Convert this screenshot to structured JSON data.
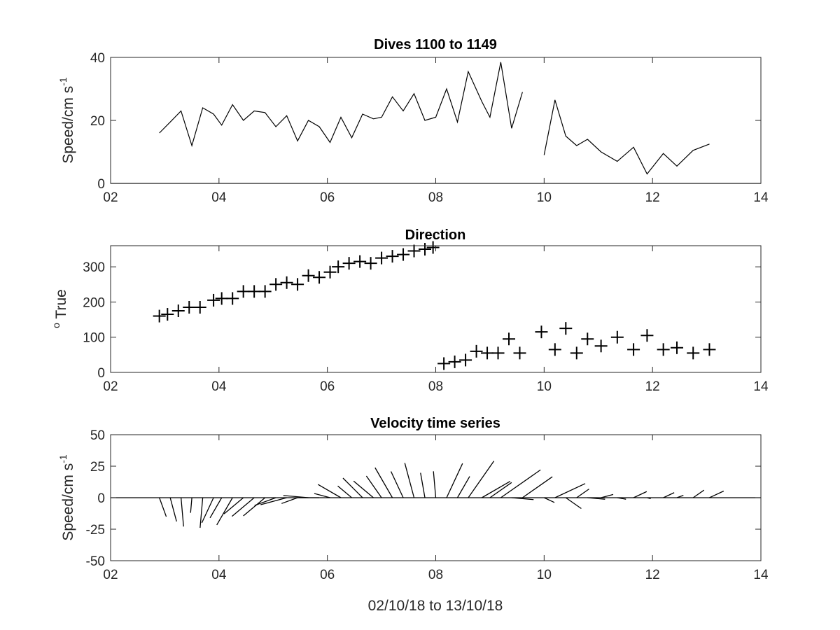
{
  "chart_data": [
    {
      "type": "line",
      "title": "Dives 1100 to 1149",
      "ylabel_main": "Speed/cm s",
      "ylabel_sup": "-1",
      "xlim": [
        2,
        14
      ],
      "ylim": [
        0,
        40
      ],
      "xticks": [
        "02",
        "04",
        "06",
        "08",
        "10",
        "12",
        "14"
      ],
      "yticks": [
        "0",
        "20",
        "40"
      ],
      "series": [
        {
          "x": [
            2.9,
            3.1,
            3.3,
            3.5,
            3.7,
            3.9,
            4.05,
            4.25,
            4.45,
            4.65,
            4.85,
            5.05,
            5.25,
            5.45,
            5.65,
            5.85,
            6.05,
            6.25,
            6.45,
            6.65,
            6.85,
            7.0,
            7.2,
            7.4,
            7.6,
            7.8,
            8.0,
            8.2,
            8.4,
            8.6,
            8.85,
            9.0,
            9.2,
            9.4,
            9.6
          ],
          "y": [
            16,
            19.5,
            23,
            12,
            24,
            22,
            18.5,
            25,
            20,
            23,
            22.5,
            18,
            21.5,
            13.5,
            20,
            18,
            13,
            21,
            14.5,
            22,
            20.5,
            21,
            27.5,
            23,
            28.5,
            20,
            21,
            30,
            19.5,
            35.5,
            26,
            21,
            38.5,
            17.5,
            29
          ]
        },
        {
          "x": [
            10.0,
            10.2,
            10.4,
            10.6,
            10.8,
            11.05,
            11.35,
            11.65,
            11.9,
            12.2,
            12.45,
            12.75,
            13.05
          ],
          "y": [
            9,
            26.5,
            15,
            12,
            14,
            10,
            7,
            11.5,
            3,
            9.5,
            5.5,
            10.5,
            12.5
          ]
        }
      ]
    },
    {
      "type": "scatter",
      "title": "Direction",
      "ylabel_sup": "o",
      "ylabel_main": " True",
      "xlim": [
        2,
        14
      ],
      "ylim": [
        0,
        360
      ],
      "xticks": [
        "02",
        "04",
        "06",
        "08",
        "10",
        "12",
        "14"
      ],
      "yticks": [
        "0",
        "100",
        "200",
        "300"
      ],
      "x": [
        2.9,
        3.05,
        3.25,
        3.45,
        3.65,
        3.9,
        4.05,
        4.25,
        4.45,
        4.65,
        4.85,
        5.05,
        5.25,
        5.45,
        5.65,
        5.85,
        6.05,
        6.2,
        6.4,
        6.6,
        6.8,
        7.0,
        7.2,
        7.4,
        7.6,
        7.8,
        7.95,
        8.15,
        8.35,
        8.55,
        8.75,
        8.95,
        9.15,
        9.35,
        9.55,
        9.95,
        10.2,
        10.4,
        10.6,
        10.8,
        11.05,
        11.35,
        11.65,
        11.9,
        12.2,
        12.45,
        12.75,
        13.05
      ],
      "y": [
        160,
        165,
        175,
        185,
        185,
        205,
        210,
        210,
        230,
        230,
        230,
        250,
        255,
        250,
        275,
        270,
        285,
        300,
        310,
        315,
        310,
        325,
        330,
        335,
        345,
        350,
        355,
        25,
        30,
        35,
        60,
        55,
        55,
        95,
        55,
        115,
        65,
        125,
        55,
        95,
        75,
        100,
        65,
        105,
        65,
        70,
        55,
        65
      ]
    },
    {
      "type": "quiver",
      "title": "Velocity time series",
      "ylabel_main": "Speed/cm s",
      "ylabel_sup": "-1",
      "xlabel": "02/10/18 to 13/10/18",
      "xlim": [
        2,
        14
      ],
      "ylim": [
        -50,
        50
      ],
      "xticks": [
        "02",
        "04",
        "06",
        "08",
        "10",
        "12",
        "14"
      ],
      "yticks": [
        "50",
        "25",
        "0",
        "-25",
        "-50"
      ],
      "t": [
        2.9,
        3.1,
        3.3,
        3.5,
        3.7,
        3.9,
        4.05,
        4.25,
        4.45,
        4.65,
        4.85,
        5.05,
        5.25,
        5.45,
        5.65,
        5.85,
        6.05,
        6.25,
        6.45,
        6.65,
        6.85,
        7.0,
        7.2,
        7.4,
        7.6,
        7.8,
        8.0,
        8.2,
        8.4,
        8.6,
        8.85,
        9.0,
        9.2,
        9.4,
        9.6,
        10.0,
        10.2,
        10.4,
        10.6,
        10.8,
        11.05,
        11.35,
        11.65,
        11.9,
        12.2,
        12.45,
        12.75,
        13.05
      ],
      "speed": [
        16,
        19.5,
        23,
        12,
        24,
        22,
        18.5,
        25,
        20,
        23,
        22.5,
        18,
        21.5,
        13.5,
        20,
        18,
        13,
        21,
        14.5,
        22,
        20.5,
        21,
        27.5,
        23,
        28.5,
        20,
        21,
        30,
        19.5,
        35.5,
        26,
        21,
        38.5,
        17.5,
        29,
        9,
        26.5,
        15,
        12,
        14,
        10,
        7,
        11.5,
        3,
        9.5,
        5.5,
        10.5,
        12.5
      ],
      "direction_deg": [
        160,
        165,
        175,
        185,
        185,
        205,
        210,
        210,
        230,
        230,
        230,
        250,
        255,
        250,
        275,
        270,
        285,
        300,
        310,
        315,
        310,
        325,
        330,
        335,
        345,
        350,
        355,
        25,
        30,
        35,
        60,
        55,
        55,
        95,
        55,
        115,
        65,
        125,
        55,
        95,
        75,
        100,
        65,
        105,
        65,
        70,
        55,
        65
      ]
    }
  ]
}
